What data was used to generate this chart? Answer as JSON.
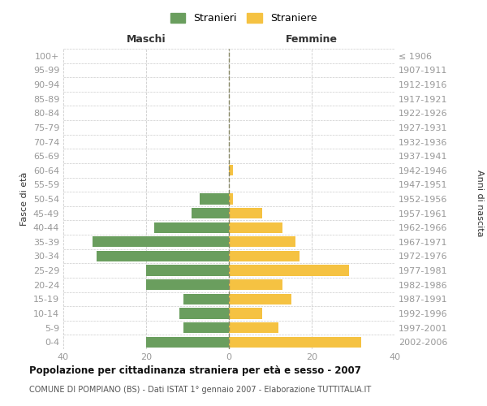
{
  "age_groups": [
    "0-4",
    "5-9",
    "10-14",
    "15-19",
    "20-24",
    "25-29",
    "30-34",
    "35-39",
    "40-44",
    "45-49",
    "50-54",
    "55-59",
    "60-64",
    "65-69",
    "70-74",
    "75-79",
    "80-84",
    "85-89",
    "90-94",
    "95-99",
    "100+"
  ],
  "birth_years": [
    "2002-2006",
    "1997-2001",
    "1992-1996",
    "1987-1991",
    "1982-1986",
    "1977-1981",
    "1972-1976",
    "1967-1971",
    "1962-1966",
    "1957-1961",
    "1952-1956",
    "1947-1951",
    "1942-1946",
    "1937-1941",
    "1932-1936",
    "1927-1931",
    "1922-1926",
    "1917-1921",
    "1912-1916",
    "1907-1911",
    "≤ 1906"
  ],
  "maschi": [
    20,
    11,
    12,
    11,
    20,
    20,
    32,
    33,
    18,
    9,
    7,
    0,
    0,
    0,
    0,
    0,
    0,
    0,
    0,
    0,
    0
  ],
  "femmine": [
    32,
    12,
    8,
    15,
    13,
    29,
    17,
    16,
    13,
    8,
    1,
    0,
    1,
    0,
    0,
    0,
    0,
    0,
    0,
    0,
    0
  ],
  "color_maschi": "#6a9e5e",
  "color_femmine": "#f5c242",
  "title": "Popolazione per cittadinanza straniera per età e sesso - 2007",
  "subtitle": "COMUNE DI POMPIANO (BS) - Dati ISTAT 1° gennaio 2007 - Elaborazione TUTTITALIA.IT",
  "label_maschi": "Maschi",
  "label_femmine": "Femmine",
  "ylabel_left": "Fasce di età",
  "ylabel_right": "Anni di nascita",
  "legend_maschi": "Stranieri",
  "legend_femmine": "Straniere",
  "xlim": 40,
  "xticks": [
    -40,
    -20,
    0,
    20,
    40
  ],
  "xtick_labels": [
    "40",
    "20",
    "0",
    "20",
    "40"
  ],
  "background_color": "#ffffff",
  "grid_color": "#cccccc",
  "bar_height": 0.75,
  "fontsize_ticks": 8,
  "fontsize_header": 9,
  "fontsize_ylabel": 8,
  "fontsize_title": 8.5,
  "fontsize_subtitle": 7,
  "fontsize_legend": 9,
  "title_color": "#111111",
  "subtitle_color": "#555555",
  "tick_color": "#999999",
  "header_color": "#333333"
}
